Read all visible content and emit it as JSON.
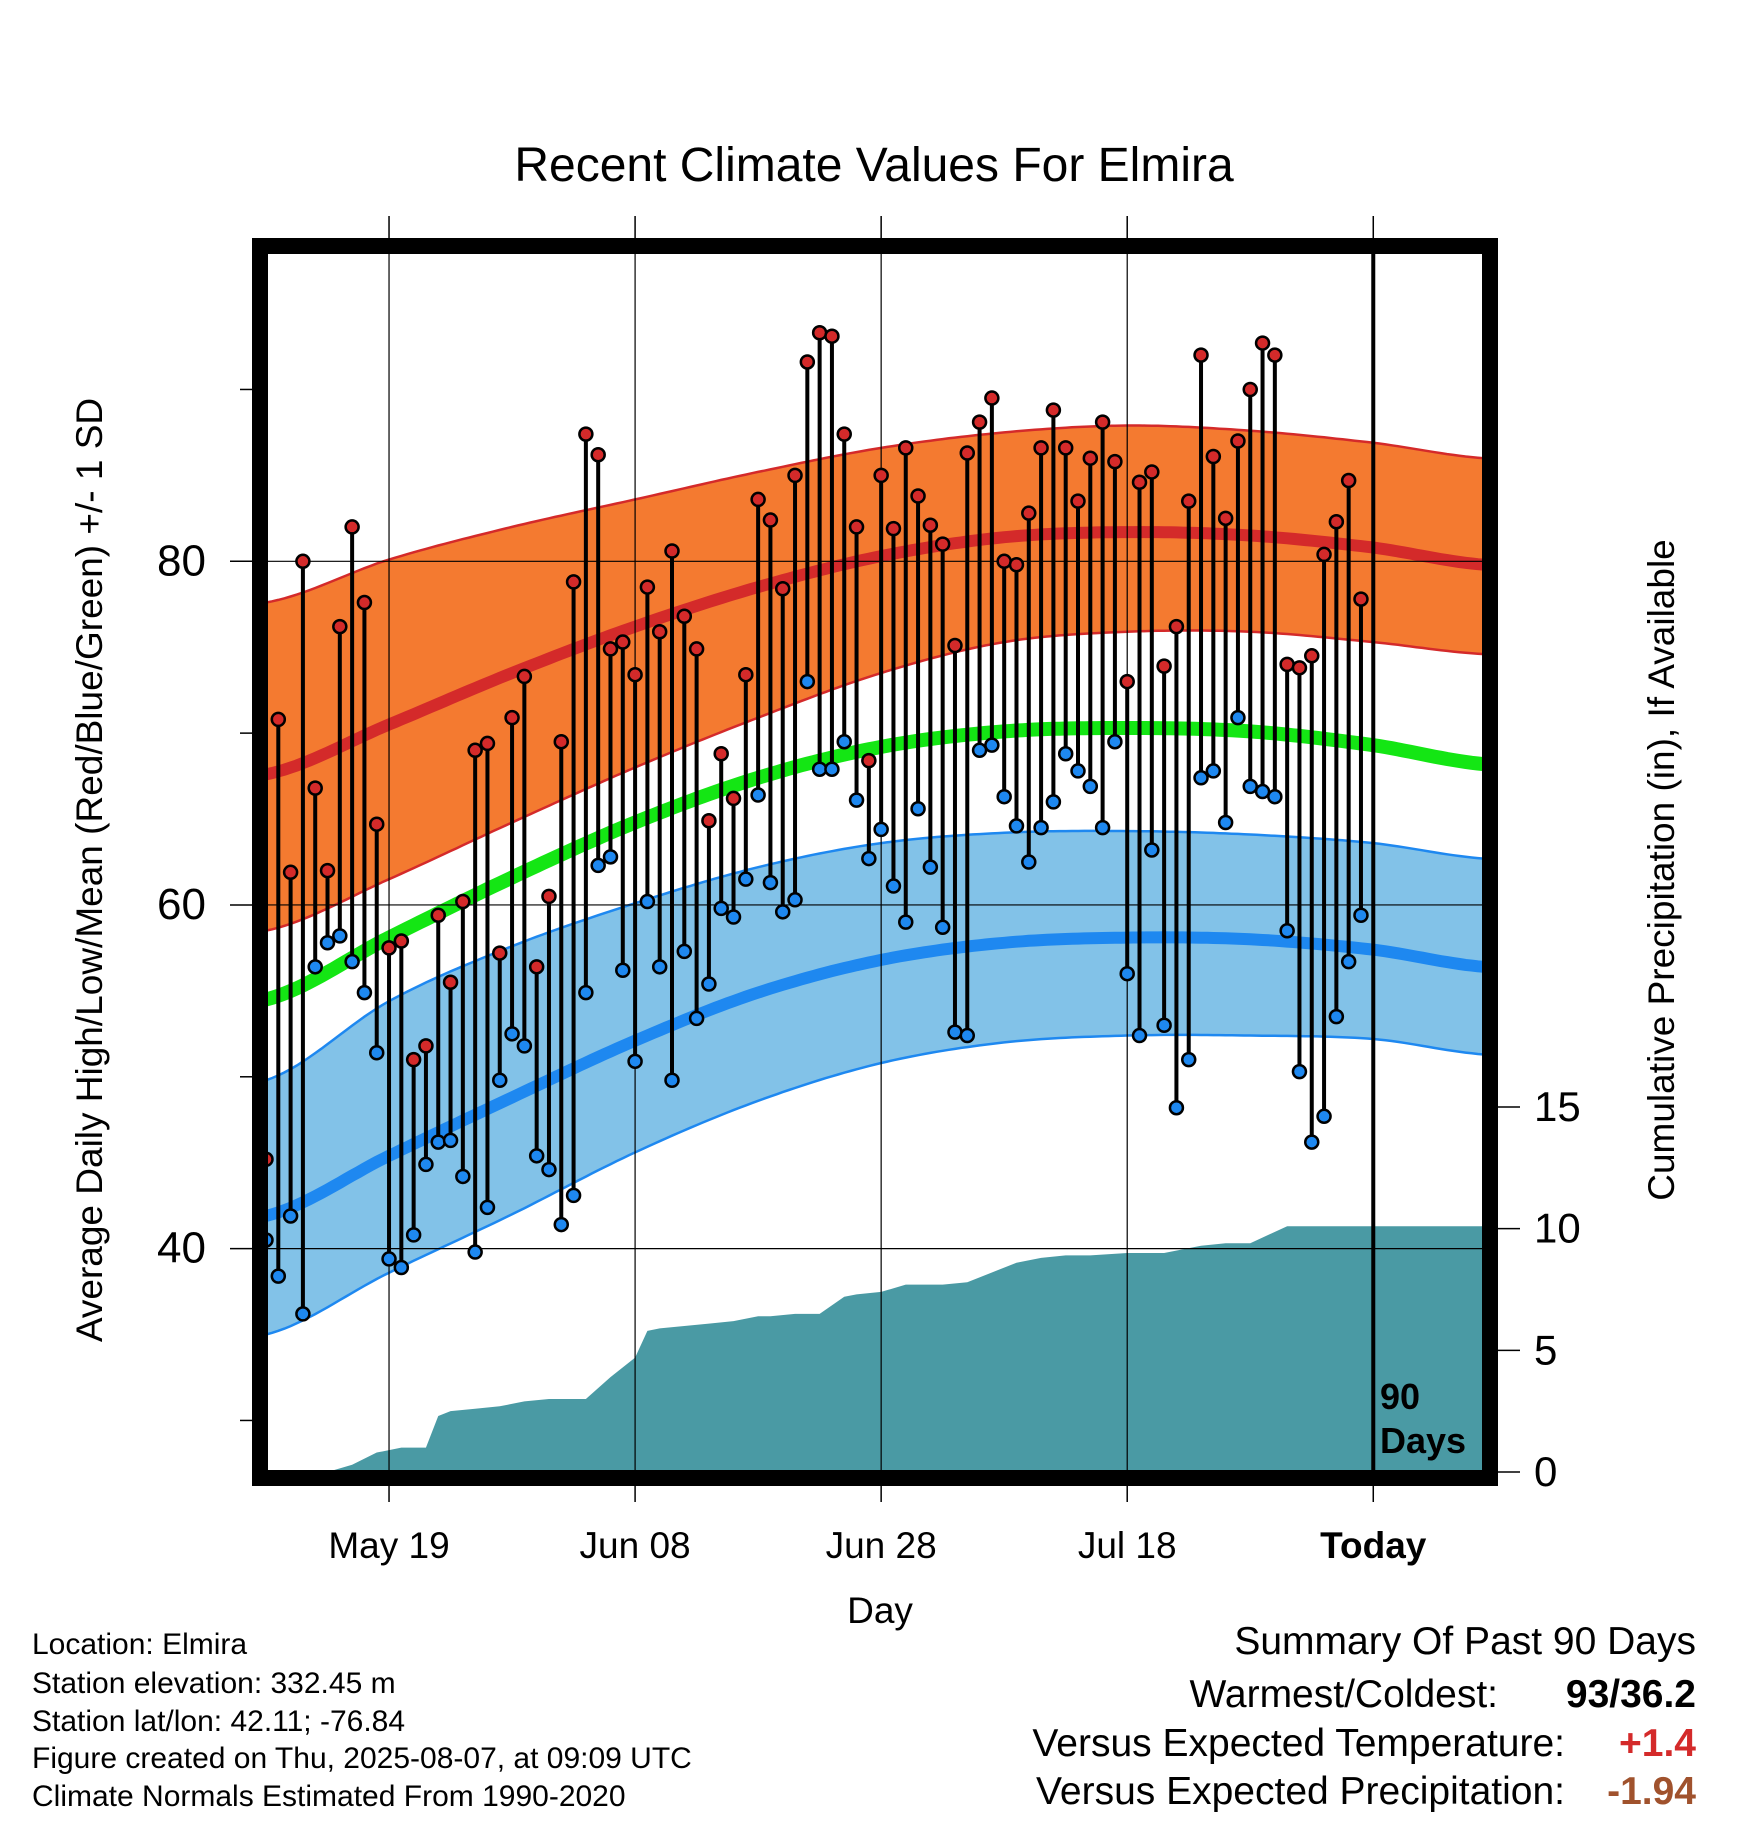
{
  "title": "Recent Climate Values For Elmira",
  "xlabel": "Day",
  "ylabel_left": "Average Daily High/Low/Mean (Red/Blue/Green) +/- 1 SD",
  "ylabel_right": "Cumulative Precipitation (in), If Available",
  "info": {
    "location": "Location: Elmira",
    "elevation": "Station elevation: 332.45 m",
    "latlon": "Station lat/lon: 42.11; -76.84",
    "created": "Figure created on Thu, 2025-08-07, at 09:09 UTC",
    "normals": "Climate Normals Estimated From 1990-2020"
  },
  "summary": {
    "heading": "Summary Of Past 90 Days",
    "warm_cold_label": "Warmest/Coldest:",
    "warm_cold_value": "93/36.2",
    "temp_label": "Versus Expected Temperature:",
    "temp_value": "+1.4",
    "precip_label": "Versus Expected Precipitation:",
    "precip_value": "-1.94"
  },
  "today_marker": {
    "line1": "90",
    "line2": "Days"
  },
  "colors": {
    "high_band": "#f47a30",
    "high_line": "#d42a2a",
    "low_band": "#82c2e8",
    "low_line": "#1e88f0",
    "mean_line": "#14e614",
    "precip": "#4a9aa4",
    "high_dot": "#d42a2a",
    "low_dot": "#1e88f0"
  },
  "chart_data": {
    "type": "line",
    "x_unit": "days relative to today",
    "xlim": [
      -90,
      9
    ],
    "x_ticks": [
      {
        "x": -80,
        "label": "May 19"
      },
      {
        "x": -60,
        "label": "Jun 08"
      },
      {
        "x": -40,
        "label": "Jun 28"
      },
      {
        "x": -20,
        "label": "Jul 18"
      },
      {
        "x": 0,
        "label": "Today"
      }
    ],
    "y_left": {
      "ylim": [
        27,
        98
      ],
      "ticks": [
        40,
        60,
        80
      ],
      "minor_ticks": [
        30,
        50,
        70,
        90
      ]
    },
    "y_right": {
      "ylim": [
        0,
        15
      ],
      "ticks": [
        0,
        5,
        10,
        15
      ]
    },
    "normals": {
      "x": [
        -90,
        -80,
        -70,
        -60,
        -50,
        -40,
        -30,
        -20,
        -10,
        0,
        9
      ],
      "high_mean": [
        67.6,
        70.5,
        73.5,
        76.2,
        78.5,
        80.3,
        81.4,
        81.7,
        81.5,
        80.8,
        79.8
      ],
      "high_sd_upper": [
        77.6,
        80.1,
        82.0,
        83.6,
        85.2,
        86.6,
        87.5,
        87.9,
        87.6,
        86.9,
        86.0
      ],
      "high_sd_lower": [
        58.5,
        61.5,
        64.8,
        68.0,
        70.9,
        73.5,
        75.3,
        75.9,
        75.9,
        75.3,
        74.6
      ],
      "mean": [
        54.5,
        58.1,
        61.6,
        64.8,
        67.4,
        69.2,
        70.1,
        70.3,
        70.1,
        69.3,
        68.2
      ],
      "low_mean": [
        41.9,
        45.4,
        48.8,
        52.1,
        54.9,
        56.8,
        57.8,
        58.1,
        58.0,
        57.4,
        56.4
      ],
      "low_sd_upper": [
        49.8,
        54.4,
        57.6,
        60.1,
        62.2,
        63.6,
        64.2,
        64.3,
        64.1,
        63.6,
        62.7
      ],
      "low_sd_lower": [
        35.0,
        38.6,
        42.0,
        45.6,
        48.6,
        50.8,
        52.0,
        52.4,
        52.4,
        52.2,
        51.3
      ]
    },
    "daily_high": [
      45.2,
      70.8,
      61.9,
      80.0,
      66.8,
      62.0,
      76.2,
      82.0,
      77.6,
      64.7,
      57.5,
      57.9,
      51.0,
      51.8,
      59.4,
      55.5,
      60.2,
      69.0,
      69.4,
      57.2,
      70.9,
      73.3,
      56.4,
      60.5,
      69.5,
      78.8,
      87.4,
      86.2,
      74.9,
      75.3,
      73.4,
      78.5,
      75.9,
      80.6,
      76.8,
      74.9,
      64.9,
      68.8,
      66.2,
      73.4,
      83.6,
      82.4,
      78.4,
      85.0,
      91.6,
      93.3,
      93.1,
      87.4,
      82.0,
      68.4,
      85.0,
      81.9,
      86.6,
      83.8,
      82.1,
      81.0,
      75.1,
      86.3,
      88.1,
      89.5,
      80.0,
      79.8,
      82.8,
      86.6,
      88.8,
      86.6,
      83.5,
      86.0,
      88.1,
      85.8,
      73.0,
      84.6,
      85.2,
      73.9,
      76.2,
      83.5,
      92.0,
      86.1,
      82.5,
      87.0,
      90.0,
      92.7,
      92.0,
      74.0,
      73.8,
      74.5,
      80.4,
      82.3,
      84.7,
      77.8
    ],
    "daily_low": [
      40.5,
      38.4,
      41.9,
      36.2,
      56.4,
      57.8,
      58.2,
      56.7,
      54.9,
      51.4,
      39.4,
      38.9,
      40.8,
      44.9,
      46.2,
      46.3,
      44.2,
      39.8,
      42.4,
      49.8,
      52.5,
      51.8,
      45.4,
      44.6,
      41.4,
      43.1,
      54.9,
      62.3,
      62.8,
      56.2,
      50.9,
      60.2,
      56.4,
      49.8,
      57.3,
      53.4,
      55.4,
      59.8,
      59.3,
      61.5,
      66.4,
      61.3,
      59.6,
      60.3,
      73.0,
      67.9,
      67.9,
      69.5,
      66.1,
      62.7,
      64.4,
      61.1,
      59.0,
      65.6,
      62.2,
      58.7,
      52.6,
      52.4,
      69.0,
      69.3,
      66.3,
      64.6,
      62.5,
      64.5,
      66.0,
      68.8,
      67.8,
      66.9,
      64.5,
      69.5,
      56.0,
      52.4,
      63.2,
      53.0,
      48.2,
      51.0,
      67.4,
      67.8,
      64.8,
      70.9,
      66.9,
      66.6,
      66.3,
      58.5,
      50.3,
      46.2,
      47.7,
      53.5,
      56.7,
      59.4
    ],
    "cumulative_precip": {
      "x": [
        -90,
        -85,
        -83,
        -81,
        -79,
        -77,
        -76,
        -75,
        -73,
        -71,
        -69,
        -67,
        -66,
        -64,
        -62,
        -60,
        -59,
        -58,
        -56,
        -54,
        -52,
        -50,
        -49,
        -47,
        -45,
        -43,
        -42,
        -40,
        -38,
        -35,
        -33,
        -31,
        -29,
        -27,
        -25,
        -23,
        -20,
        -17,
        -14,
        -12,
        -10,
        -7,
        -6,
        -3,
        0,
        9
      ],
      "values": [
        0.0,
        0.0,
        0.3,
        0.8,
        1.0,
        1.0,
        2.3,
        2.5,
        2.6,
        2.7,
        2.9,
        3.0,
        3.0,
        3.0,
        3.9,
        4.7,
        5.8,
        5.9,
        6.0,
        6.1,
        6.2,
        6.4,
        6.4,
        6.5,
        6.5,
        7.2,
        7.3,
        7.4,
        7.7,
        7.7,
        7.8,
        8.2,
        8.6,
        8.8,
        8.9,
        8.9,
        9.0,
        9.0,
        9.3,
        9.4,
        9.4,
        10.1,
        10.1,
        10.1,
        10.1,
        10.1
      ]
    },
    "grid": true,
    "legend": "none"
  }
}
